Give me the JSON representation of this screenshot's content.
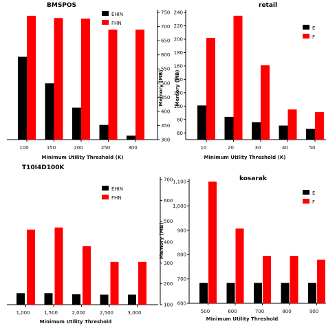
{
  "colors": {
    "EHIN": "#000000",
    "FHN": "#ff0000"
  },
  "chart_data": [
    {
      "type": "bar",
      "title": "BMSPOS",
      "categories": [
        "100",
        "150",
        "200",
        "250",
        "300"
      ],
      "series": [
        {
          "name": "EHIN",
          "values": [
            593,
            499,
            413,
            352,
            314
          ]
        },
        {
          "name": "FHN",
          "values": [
            738,
            730,
            728,
            689,
            689
          ]
        }
      ],
      "xlabel": "Minimum Utility Threshold (K)",
      "ylabel": "Memory (MB)",
      "ylim": [
        300,
        750
      ],
      "yticks": [
        "300",
        "350",
        "400",
        "450",
        "500",
        "550",
        "600",
        "650",
        "700",
        "750"
      ],
      "legend": "top-right"
    },
    {
      "type": "bar",
      "title": "retail",
      "categories": [
        "10",
        "20",
        "30",
        "40",
        "50"
      ],
      "series": [
        {
          "name": "EHIN",
          "values": [
            101,
            84,
            76,
            71,
            66
          ]
        },
        {
          "name": "FHN",
          "values": [
            202,
            235,
            161,
            95,
            91
          ]
        }
      ],
      "xlabel": "Minimum Utility Threshold (K)",
      "ylabel": "Memory (MB)",
      "ylim": [
        50,
        240
      ],
      "yticks": [
        "60",
        "80",
        "100",
        "120",
        "140",
        "160",
        "180",
        "200",
        "220",
        "240"
      ],
      "legend": "top-right",
      "legend_labels": [
        "E",
        "F"
      ]
    },
    {
      "type": "bar",
      "title": "T10I4D100K",
      "categories": [
        "1,000",
        "1,500",
        "2,000",
        "2,500",
        "3,000"
      ],
      "series": [
        {
          "name": "EHIN",
          "values": [
            155,
            155,
            150,
            148,
            148
          ]
        },
        {
          "name": "FHN",
          "values": [
            460,
            470,
            380,
            305,
            305
          ]
        }
      ],
      "xlabel": "Minimum Utility Threshold",
      "ylabel": "Memory (MB)",
      "ylim": [
        100,
        700
      ],
      "yticks": [
        "100",
        "200",
        "300",
        "400",
        "500",
        "600",
        "700"
      ],
      "legend": "top-right"
    },
    {
      "type": "bar",
      "title": "kosarak",
      "categories": [
        "500",
        "600",
        "700",
        "800",
        "900"
      ],
      "series": [
        {
          "name": "EHIN",
          "values": [
            684,
            684,
            684,
            684,
            684
          ]
        },
        {
          "name": "FHN",
          "values": [
            1100,
            907,
            795,
            795,
            779
          ]
        }
      ],
      "xlabel": "Minimum Utility Threshold",
      "ylabel": "",
      "ylim": [
        600,
        1100
      ],
      "yticks": [
        "600",
        "700",
        "800",
        "900",
        "1,000",
        "1,100"
      ],
      "legend": "top-right",
      "legend_labels": [
        "E",
        "F"
      ],
      "extra_partial_bar": {
        "name": "EHIN",
        "value": 684
      }
    }
  ]
}
